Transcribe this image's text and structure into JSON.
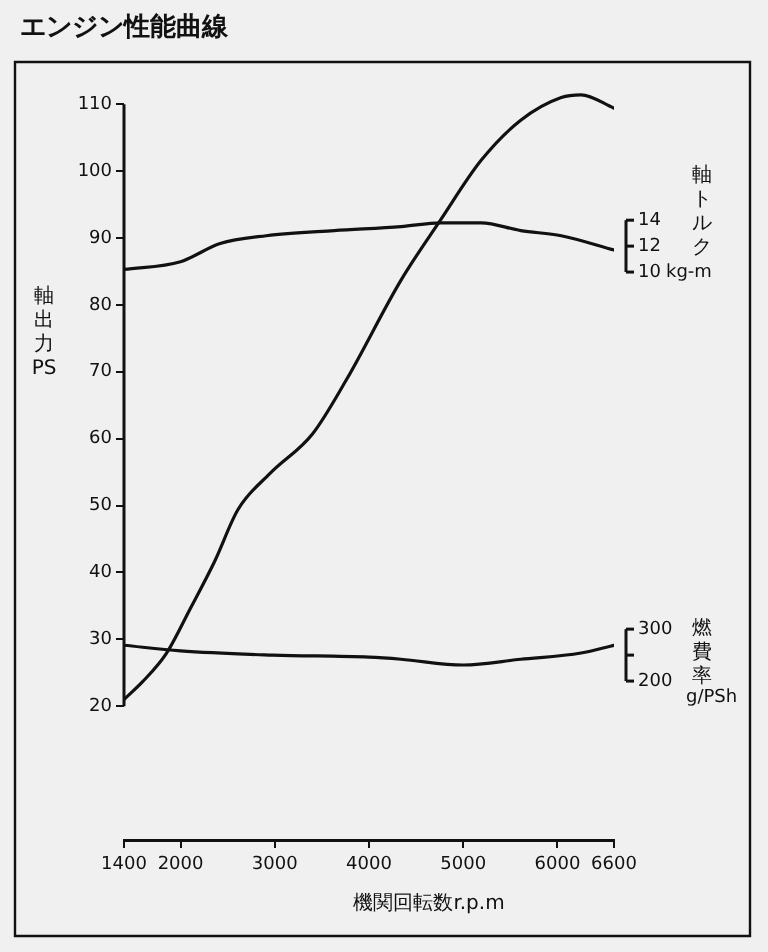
{
  "chart_data": {
    "type": "line",
    "title": "エンジン性能曲線",
    "xlabel": "機関回転数r.p.m",
    "ylabel": "軸出力PS",
    "y2label": "軸トルク kg-m",
    "y3label": "燃費率 g/PSh",
    "x": [
      1400,
      1600,
      1850,
      2100,
      2360,
      2610,
      2950,
      3400,
      3760,
      4340,
      4760,
      5190,
      5610,
      6040,
      6250,
      6600
    ],
    "series": [
      {
        "color": "#111111",
        "axis": "y",
        "values": [
          21,
          23.7,
          27.9,
          34.5,
          41.6,
          49.4,
          54.8,
          60.7,
          68.8,
          83.7,
          92.7,
          101.6,
          107.6,
          111,
          111.4,
          109.4
        ]
      },
      {
        "color": "#111111",
        "axis": "y2",
        "x": [
          1400,
          2000,
          2420,
          2910,
          3630,
          4340,
          4760,
          5190,
          5610,
          6040,
          6600
        ],
        "values": [
          10.2,
          10.8,
          12.2,
          12.8,
          13.2,
          13.5,
          13.8,
          13.8,
          13.2,
          12.8,
          11.7
        ]
      },
      {
        "color": "#111111",
        "axis": "y3",
        "x": [
          1400,
          2000,
          2980,
          4000,
          4340,
          5000,
          5610,
          6250,
          6600
        ],
        "values": [
          269,
          258,
          250,
          246,
          242,
          231,
          242,
          254,
          269
        ]
      }
    ],
    "xlim": [
      1400,
      6600
    ],
    "xticks": [
      1400,
      2000,
      3000,
      4000,
      5000,
      6000,
      6600
    ],
    "ylim": [
      0,
      116.3
    ],
    "yticks": [
      20,
      30,
      40,
      50,
      60,
      70,
      80,
      90,
      100,
      110
    ],
    "y2lim": [
      -33.8,
      26.2
    ],
    "y2ticks": [
      10,
      12,
      14
    ],
    "y3lim": [
      -106,
      1392
    ],
    "y3ticks": [
      200,
      {
        "value": 250,
        "label": null
      },
      300
    ],
    "grid": false,
    "legend": false,
    "marker": "none",
    "line_style": "solid"
  }
}
